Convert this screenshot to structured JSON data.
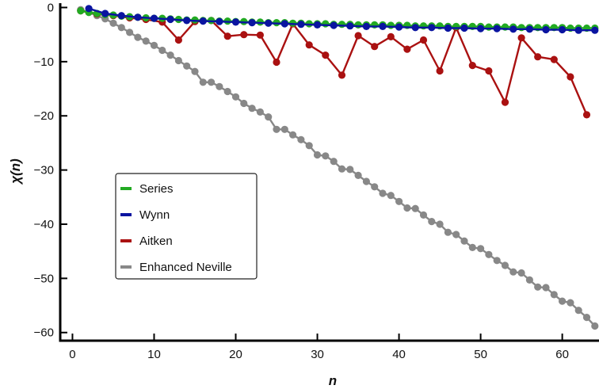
{
  "chart_data": {
    "type": "line",
    "title": "",
    "xlabel": "n",
    "ylabel": "χ(n)",
    "xlim": [
      -1.5,
      64.5
    ],
    "ylim": [
      -61.5,
      0.8
    ],
    "xticks": [
      0,
      10,
      20,
      30,
      40,
      50,
      60
    ],
    "yticks": [
      0,
      -10,
      -20,
      -30,
      -40,
      -50,
      -60
    ],
    "xtick_labels": [
      "0",
      "10",
      "20",
      "30",
      "40",
      "50",
      "60"
    ],
    "ytick_labels": [
      "0",
      "−10",
      "−20",
      "−30",
      "−40",
      "−50",
      "−60"
    ],
    "grid": false,
    "legend_position": "center-left",
    "series": [
      {
        "name": "Enhanced Neville",
        "color": "#888888",
        "x": [
          1,
          2,
          3,
          4,
          5,
          6,
          7,
          8,
          9,
          10,
          11,
          12,
          13,
          14,
          15,
          16,
          17,
          18,
          19,
          20,
          21,
          22,
          23,
          24,
          25,
          26,
          27,
          28,
          29,
          30,
          31,
          32,
          33,
          34,
          35,
          36,
          37,
          38,
          39,
          40,
          41,
          42,
          43,
          44,
          45,
          46,
          47,
          48,
          49,
          50,
          51,
          52,
          53,
          54,
          55,
          56,
          57,
          58,
          59,
          60,
          61,
          62,
          63,
          64
        ],
        "y": [
          -0.4,
          -0.9,
          -1.5,
          -2.1,
          -2.9,
          -3.7,
          -4.6,
          -5.5,
          -6.2,
          -7.0,
          -7.9,
          -8.8,
          -9.8,
          -10.8,
          -11.8,
          -13.8,
          -13.8,
          -14.6,
          -15.5,
          -16.5,
          -17.7,
          -18.6,
          -19.3,
          -20.2,
          -22.5,
          -22.5,
          -23.5,
          -24.4,
          -25.5,
          -27.2,
          -27.4,
          -28.4,
          -29.8,
          -29.9,
          -31.0,
          -32.1,
          -33.1,
          -34.3,
          -34.7,
          -35.8,
          -37.0,
          -37.1,
          -38.3,
          -39.5,
          -40.0,
          -41.5,
          -41.9,
          -43.1,
          -44.3,
          -44.5,
          -45.6,
          -46.7,
          -47.6,
          -48.8,
          -49.0,
          -50.3,
          -51.6,
          -51.7,
          -53.0,
          -54.2,
          -54.5,
          -55.9,
          -57.2,
          -58.8
        ]
      },
      {
        "name": "Aitken",
        "color": "#aa1111",
        "x": [
          1,
          3,
          5,
          7,
          9,
          11,
          13,
          15,
          17,
          19,
          21,
          23,
          25,
          27,
          29,
          31,
          33,
          35,
          37,
          39,
          41,
          43,
          45,
          47,
          49,
          51,
          53,
          55,
          57,
          59,
          61,
          63
        ],
        "y": [
          -0.6,
          -1.2,
          -1.5,
          -1.9,
          -2.2,
          -2.7,
          -6.0,
          -2.6,
          -2.4,
          -5.3,
          -5.0,
          -5.1,
          -10.1,
          -3.0,
          -6.9,
          -8.8,
          -12.5,
          -5.2,
          -7.2,
          -5.4,
          -7.7,
          -6.0,
          -11.7,
          -3.7,
          -10.7,
          -11.7,
          -17.5,
          -5.6,
          -9.1,
          -9.6,
          -12.8,
          -19.8
        ]
      },
      {
        "name": "Series",
        "color": "#22aa22",
        "x": [
          1,
          2,
          3,
          4,
          5,
          6,
          7,
          8,
          9,
          10,
          11,
          12,
          13,
          14,
          15,
          16,
          17,
          18,
          19,
          20,
          21,
          22,
          23,
          24,
          25,
          26,
          27,
          28,
          29,
          30,
          31,
          32,
          33,
          34,
          35,
          36,
          37,
          38,
          39,
          40,
          41,
          42,
          43,
          44,
          45,
          46,
          47,
          48,
          49,
          50,
          51,
          52,
          53,
          54,
          55,
          56,
          57,
          58,
          59,
          60,
          61,
          62,
          63,
          64
        ],
        "y": [
          -0.6,
          -0.9,
          -1.1,
          -1.3,
          -1.4,
          -1.6,
          -1.7,
          -1.8,
          -1.9,
          -2.0,
          -2.0,
          -2.1,
          -2.2,
          -2.3,
          -2.3,
          -2.4,
          -2.4,
          -2.5,
          -2.5,
          -2.6,
          -2.6,
          -2.7,
          -2.7,
          -2.8,
          -2.8,
          -2.8,
          -2.9,
          -2.9,
          -3.0,
          -3.0,
          -3.0,
          -3.1,
          -3.1,
          -3.1,
          -3.2,
          -3.2,
          -3.2,
          -3.2,
          -3.3,
          -3.3,
          -3.3,
          -3.4,
          -3.4,
          -3.4,
          -3.4,
          -3.5,
          -3.5,
          -3.5,
          -3.5,
          -3.5,
          -3.6,
          -3.6,
          -3.6,
          -3.6,
          -3.7,
          -3.7,
          -3.7,
          -3.7,
          -3.7,
          -3.7,
          -3.8,
          -3.8,
          -3.8,
          -3.8
        ]
      },
      {
        "name": "Wynn",
        "color": "#0a14a0",
        "x": [
          2,
          4,
          6,
          8,
          10,
          12,
          14,
          16,
          18,
          20,
          22,
          24,
          26,
          28,
          30,
          32,
          34,
          36,
          38,
          40,
          42,
          44,
          46,
          48,
          50,
          52,
          54,
          56,
          58,
          60,
          62,
          64
        ],
        "y": [
          -0.2,
          -1.1,
          -1.5,
          -1.8,
          -2.0,
          -2.2,
          -2.4,
          -2.5,
          -2.6,
          -2.7,
          -2.8,
          -2.9,
          -3.0,
          -3.1,
          -3.2,
          -3.3,
          -3.4,
          -3.5,
          -3.5,
          -3.6,
          -3.7,
          -3.7,
          -3.8,
          -3.8,
          -3.9,
          -3.9,
          -4.0,
          -4.0,
          -4.1,
          -4.1,
          -4.2,
          -4.2
        ]
      }
    ],
    "legend": [
      {
        "label": "Series",
        "color": "#22aa22"
      },
      {
        "label": "Wynn",
        "color": "#0a14a0"
      },
      {
        "label": "Aitken",
        "color": "#aa1111"
      },
      {
        "label": "Enhanced Neville",
        "color": "#888888"
      }
    ]
  }
}
